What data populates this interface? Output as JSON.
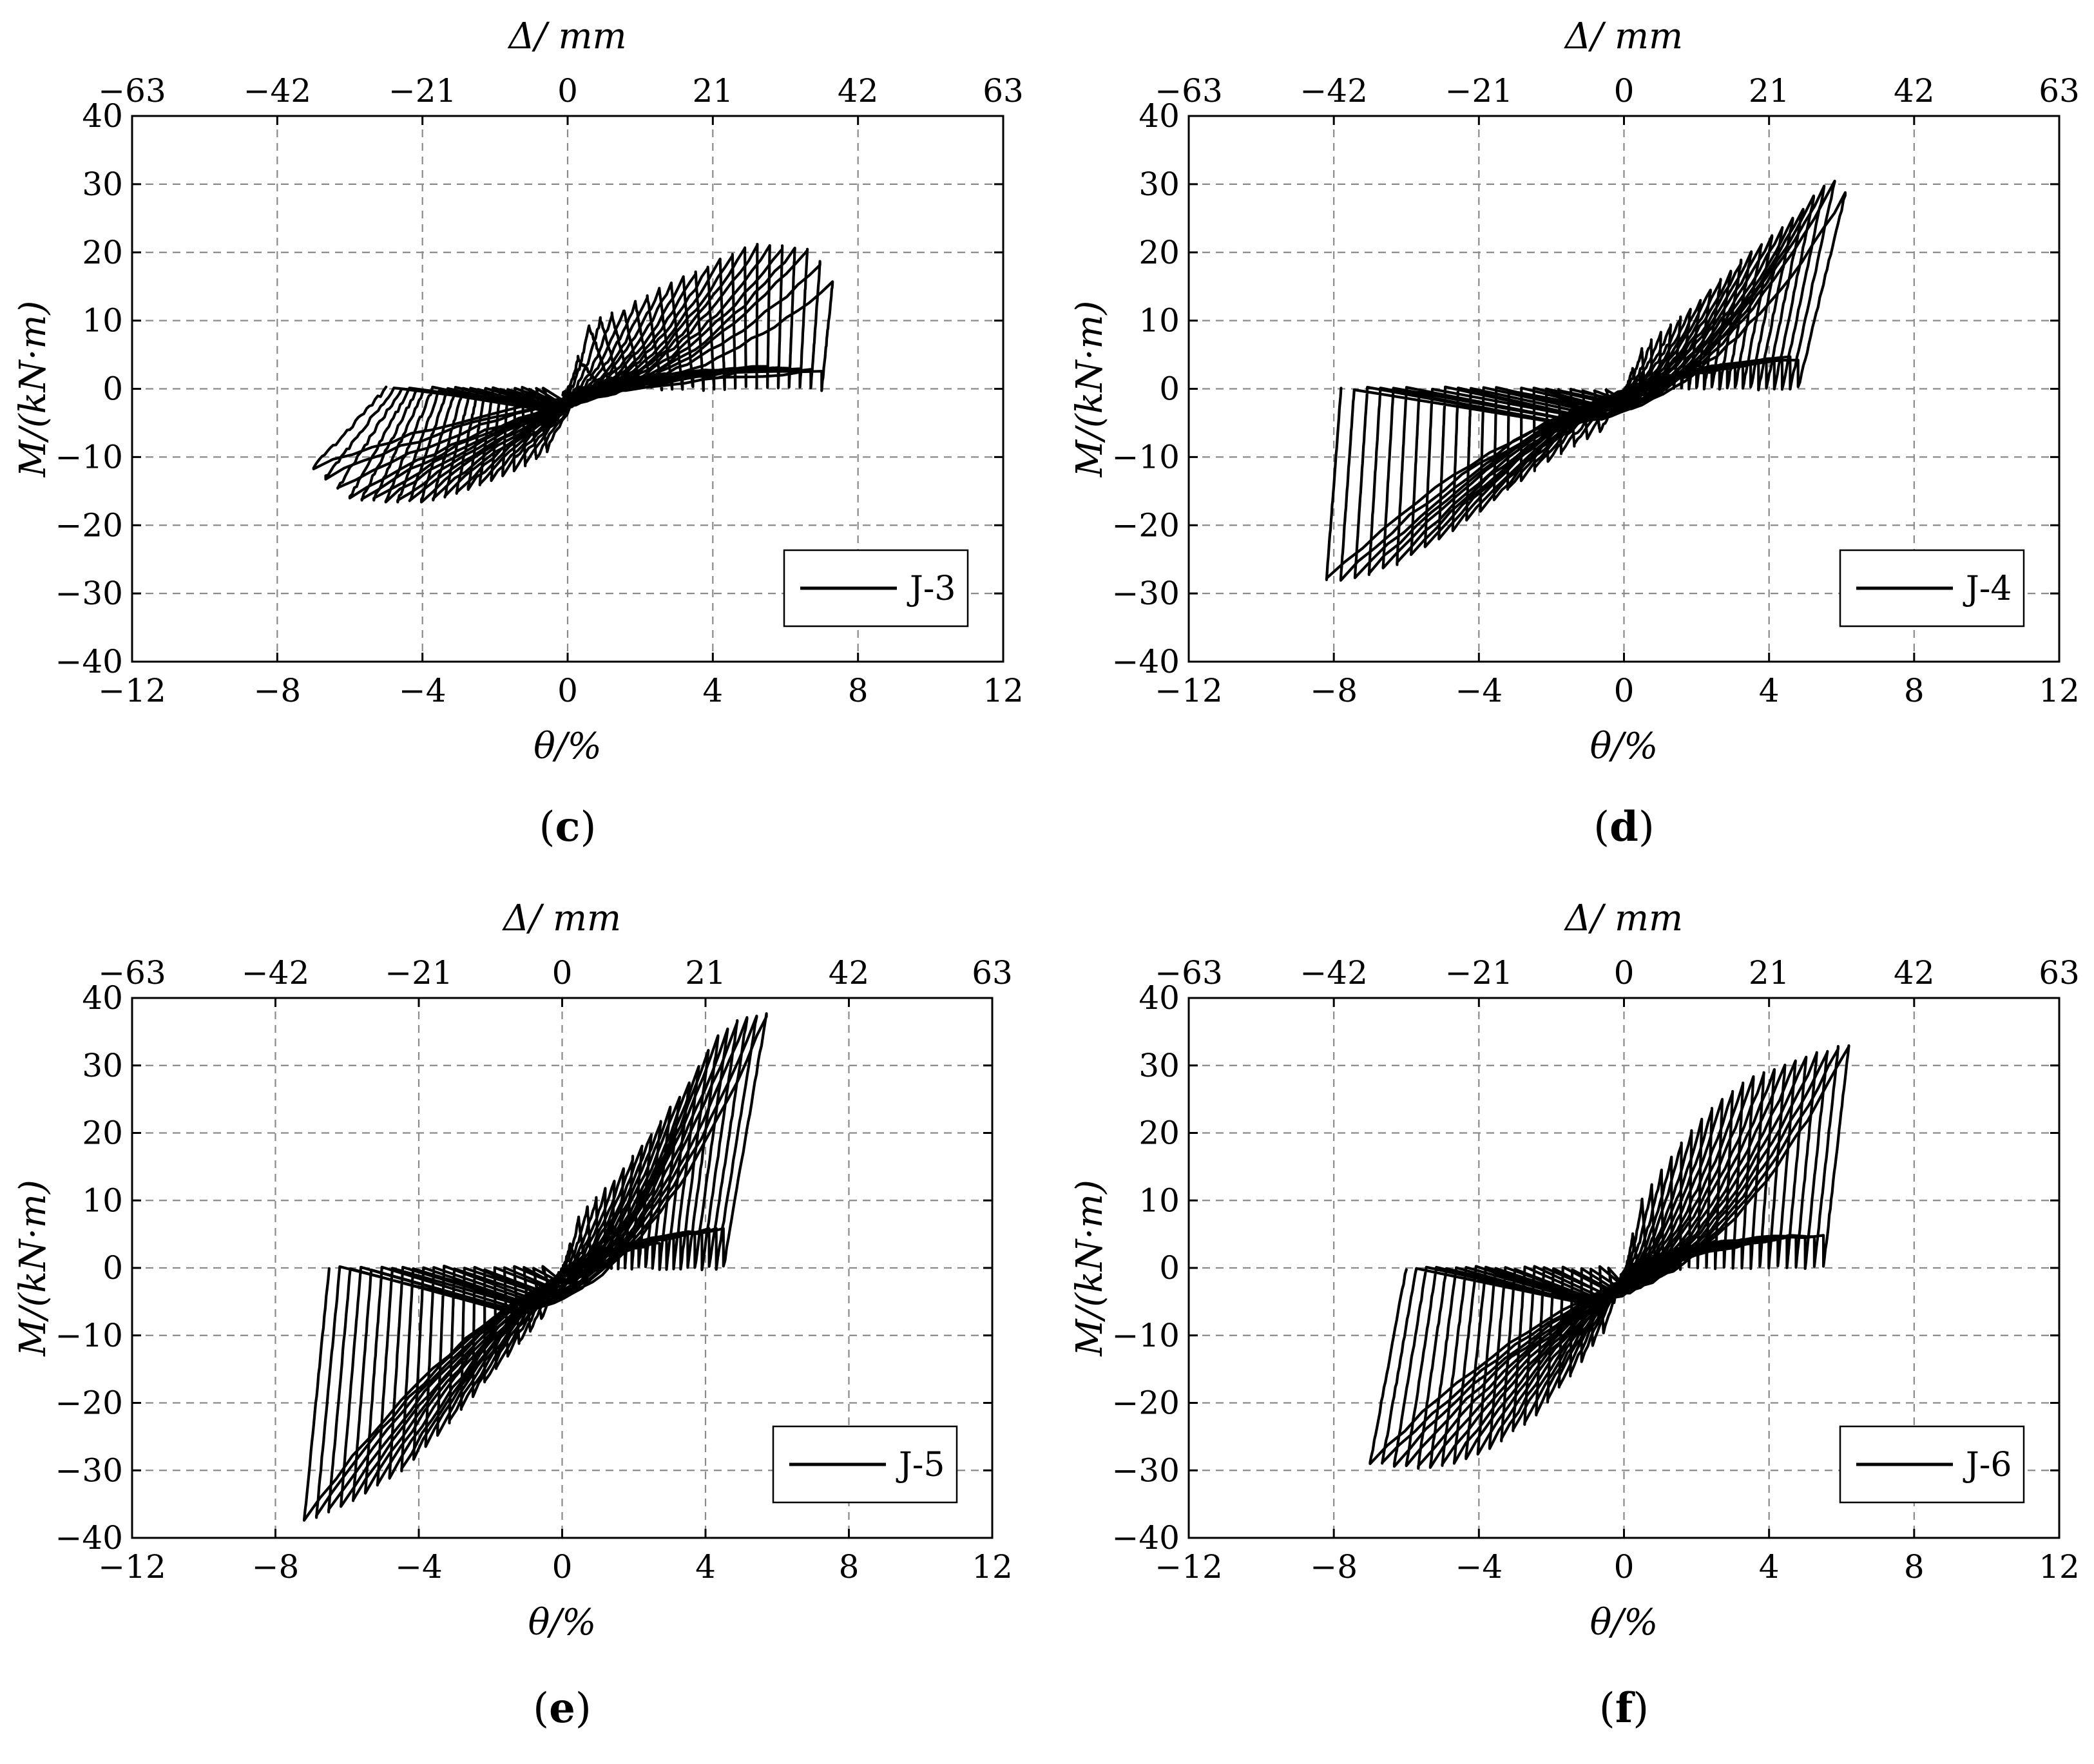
{
  "chart_data": [
    {
      "type": "line",
      "panel_label": "c",
      "xlabel": "θ/%",
      "x2label": "Δ/ mm",
      "ylabel": "M/(kN·m)",
      "xlim": [
        -12,
        12
      ],
      "x2lim": [
        -63,
        63
      ],
      "ylim": [
        -40,
        40
      ],
      "xticks": [
        "−12",
        "−8",
        "−4",
        "0",
        "4",
        "8",
        "12"
      ],
      "x2ticks": [
        "−63",
        "−42",
        "−21",
        "0",
        "21",
        "42",
        "63"
      ],
      "yticks": [
        "40",
        "30",
        "20",
        "10",
        "0",
        "−10",
        "−20",
        "−30",
        "−40"
      ],
      "grid": true,
      "legend_position": "bottom-right",
      "series": [
        {
          "name": "J-3",
          "color": "#000000",
          "envelope_positive": [
            [
              0.6,
              9.5
            ],
            [
              1.5,
              11.5
            ],
            [
              2.5,
              14.5
            ],
            [
              3.5,
              17
            ],
            [
              4.5,
              19.5
            ],
            [
              5.1,
              21.0
            ],
            [
              6.7,
              20.5
            ],
            [
              7.3,
              15.5
            ]
          ],
          "envelope_negative": [
            [
              -0.6,
              -9.5
            ],
            [
              -1.5,
              -12.0
            ],
            [
              -2.5,
              -14.0
            ],
            [
              -3.5,
              -16.0
            ],
            [
              -4.5,
              -16.6
            ],
            [
              -6.0,
              -16.0
            ],
            [
              -7.0,
              -11.5
            ]
          ],
          "residual_positive": [
            [
              0.7,
              0.0
            ],
            [
              7.0,
              5.0
            ]
          ],
          "residual_negative": [
            [
              -0.5,
              0.0
            ],
            [
              -5.0,
              0.0
            ]
          ]
        }
      ]
    },
    {
      "type": "line",
      "panel_label": "d",
      "xlabel": "θ/%",
      "x2label": "Δ/ mm",
      "ylabel": "M/(kN·m)",
      "xlim": [
        -12,
        12
      ],
      "x2lim": [
        -63,
        63
      ],
      "ylim": [
        -40,
        40
      ],
      "xticks": [
        "−12",
        "−8",
        "−4",
        "0",
        "4",
        "8",
        "12"
      ],
      "x2ticks": [
        "−63",
        "−42",
        "−21",
        "0",
        "21",
        "42",
        "63"
      ],
      "yticks": [
        "40",
        "30",
        "20",
        "10",
        "0",
        "−10",
        "−20",
        "−30",
        "−40"
      ],
      "grid": true,
      "legend_position": "bottom-right",
      "series": [
        {
          "name": "J-4",
          "color": "#000000",
          "envelope_positive": [
            [
              0.5,
              6.0
            ],
            [
              1.5,
              10.0
            ],
            [
              2.5,
              15.0
            ],
            [
              3.5,
              20.0
            ],
            [
              4.5,
              24.0
            ],
            [
              5.5,
              29.5
            ],
            [
              5.9,
              30.5
            ],
            [
              6.1,
              28.5
            ]
          ],
          "envelope_negative": [
            [
              -0.5,
              -6.0
            ],
            [
              -2.0,
              -10.0
            ],
            [
              -4.0,
              -18.0
            ],
            [
              -6.0,
              -25.0
            ],
            [
              -7.5,
              -28.0
            ],
            [
              -8.2,
              -28.0
            ]
          ],
          "residual_positive": [
            [
              0.2,
              0.0
            ],
            [
              4.8,
              0.0
            ]
          ],
          "residual_negative": [
            [
              -0.2,
              0.0
            ],
            [
              -7.8,
              0.0
            ]
          ]
        }
      ]
    },
    {
      "type": "line",
      "panel_label": "e",
      "xlabel": "θ/%",
      "x2label": "Δ/ mm",
      "ylabel": "M/(kN·m)",
      "xlim": [
        -12,
        12
      ],
      "x2lim": [
        -63,
        63
      ],
      "ylim": [
        -40,
        40
      ],
      "xticks": [
        "−12",
        "−8",
        "−4",
        "0",
        "4",
        "8",
        "12"
      ],
      "x2ticks": [
        "−63",
        "−42",
        "−21",
        "0",
        "21",
        "42",
        "63"
      ],
      "yticks": [
        "40",
        "30",
        "20",
        "10",
        "0",
        "−10",
        "−20",
        "−30",
        "−40"
      ],
      "grid": true,
      "legend_position": "bottom-right",
      "series": [
        {
          "name": "J-5",
          "color": "#000000",
          "envelope_positive": [
            [
              0.5,
              8.0
            ],
            [
              1.5,
              13.0
            ],
            [
              2.5,
              20.0
            ],
            [
              3.5,
              27.0
            ],
            [
              4.3,
              34.0
            ],
            [
              5.0,
              37.0
            ],
            [
              5.7,
              37.5
            ]
          ],
          "envelope_negative": [
            [
              -0.5,
              -7.0
            ],
            [
              -1.5,
              -13.0
            ],
            [
              -3.0,
              -22.0
            ],
            [
              -4.5,
              -30.0
            ],
            [
              -6.0,
              -35.0
            ],
            [
              -7.2,
              -37.5
            ]
          ],
          "residual_positive": [
            [
              0.3,
              0.0
            ],
            [
              4.5,
              0.0
            ]
          ],
          "residual_negative": [
            [
              -0.3,
              0.0
            ],
            [
              -6.5,
              0.0
            ]
          ]
        }
      ]
    },
    {
      "type": "line",
      "panel_label": "f",
      "xlabel": "θ/%",
      "x2label": "Δ/ mm",
      "ylabel": "M/(kN·m)",
      "xlim": [
        -12,
        12
      ],
      "x2lim": [
        -63,
        63
      ],
      "ylim": [
        -40,
        40
      ],
      "xticks": [
        "−12",
        "−8",
        "−4",
        "0",
        "4",
        "8",
        "12"
      ],
      "x2ticks": [
        "−63",
        "−42",
        "−21",
        "0",
        "21",
        "42",
        "63"
      ],
      "yticks": [
        "40",
        "30",
        "20",
        "10",
        "0",
        "−10",
        "−20",
        "−30",
        "−40"
      ],
      "grid": true,
      "legend_position": "bottom-right",
      "series": [
        {
          "name": "J-6",
          "color": "#000000",
          "envelope_positive": [
            [
              0.5,
              10.0
            ],
            [
              1.5,
              18.0
            ],
            [
              2.5,
              24.0
            ],
            [
              3.5,
              28.0
            ],
            [
              4.5,
              30.0
            ],
            [
              5.5,
              32.0
            ],
            [
              6.2,
              33.0
            ]
          ],
          "envelope_negative": [
            [
              -0.5,
              -9.0
            ],
            [
              -1.5,
              -16.0
            ],
            [
              -2.5,
              -22.0
            ],
            [
              -3.5,
              -26.0
            ],
            [
              -4.5,
              -28.5
            ],
            [
              -5.5,
              -29.5
            ],
            [
              -7.0,
              -29.0
            ]
          ],
          "residual_positive": [
            [
              0.2,
              0.0
            ],
            [
              5.5,
              0.0
            ]
          ],
          "residual_negative": [
            [
              -0.2,
              0.0
            ],
            [
              -6.0,
              0.0
            ]
          ]
        }
      ]
    }
  ]
}
